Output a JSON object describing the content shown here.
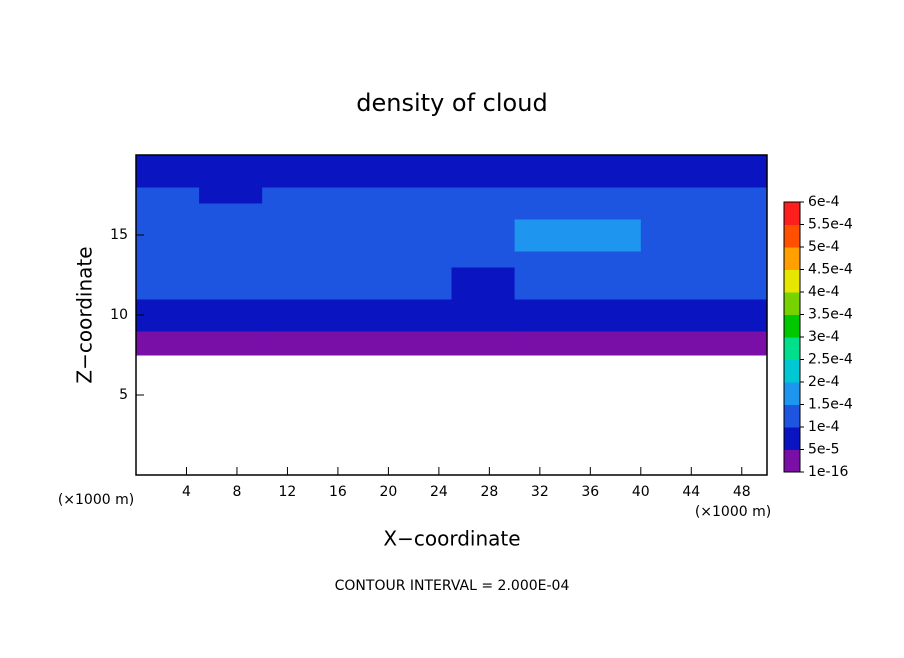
{
  "chart_data": {
    "type": "contour",
    "title": "density of cloud",
    "x_label": "X−coordinate",
    "y_label": "Z−coordinate",
    "x_unit": "(×1000 m)",
    "y_unit": "(×1000 m)",
    "footer": "CONTOUR INTERVAL = 2.000E-04",
    "xlim": [
      0,
      50
    ],
    "ylim": [
      0,
      20
    ],
    "xticks": [
      4,
      8,
      12,
      16,
      20,
      24,
      28,
      32,
      36,
      40,
      44,
      48
    ],
    "yticks": [
      5,
      10,
      15
    ],
    "xbins": [
      0,
      5,
      10,
      15,
      20,
      25,
      30,
      35,
      40,
      45,
      50
    ],
    "zbins": [
      7.5,
      9,
      10,
      11,
      12,
      13,
      14,
      15,
      16,
      17,
      18,
      19,
      20
    ],
    "values": [
      [
        2e-05,
        2e-05,
        2e-05,
        2e-05,
        2e-05,
        2e-05,
        2e-05,
        2e-05,
        2e-05,
        2e-05
      ],
      [
        6e-05,
        6e-05,
        6e-05,
        6e-05,
        6e-05,
        6e-05,
        6e-05,
        6e-05,
        6e-05,
        6e-05
      ],
      [
        9e-05,
        9e-05,
        9e-05,
        9e-05,
        9e-05,
        9e-05,
        9e-05,
        9e-05,
        9e-05,
        9e-05
      ],
      [
        0.0001,
        0.0001,
        0.0001,
        0.0001,
        0.0001,
        8e-05,
        0.0001,
        0.0001,
        0.0001,
        0.0001
      ],
      [
        0.00011,
        0.00011,
        0.00011,
        0.00011,
        0.00011,
        7e-05,
        0.00011,
        0.00011,
        0.00011,
        0.00011
      ],
      [
        0.00012,
        0.00012,
        0.00012,
        0.00012,
        0.00012,
        0.00011,
        0.00012,
        0.00012,
        0.00012,
        0.00012
      ],
      [
        0.00013,
        0.00013,
        0.00012,
        0.00013,
        0.00013,
        0.00013,
        0.00016,
        0.00016,
        0.00013,
        0.00013
      ],
      [
        0.00013,
        0.00013,
        0.00012,
        0.00013,
        0.00013,
        0.00013,
        0.00016,
        0.00016,
        0.00013,
        0.00013
      ],
      [
        0.00012,
        0.00011,
        0.00012,
        0.00012,
        0.00012,
        0.00012,
        0.00012,
        0.00012,
        0.00012,
        0.00012
      ],
      [
        0.00012,
        8e-05,
        0.00011,
        0.00012,
        0.00012,
        0.00012,
        0.00012,
        0.00012,
        0.00012,
        0.00012
      ],
      [
        9e-05,
        9e-05,
        9e-05,
        9e-05,
        9e-05,
        9e-05,
        9e-05,
        9e-05,
        9e-05,
        9e-05
      ],
      [
        6e-05,
        6e-05,
        6e-05,
        6e-05,
        6e-05,
        6e-05,
        6e-05,
        6e-05,
        6e-05,
        5e-05
      ]
    ],
    "levels": [
      {
        "value": 1e-16,
        "label": "1e-16"
      },
      {
        "value": 5e-05,
        "label": "5e-5"
      },
      {
        "value": 0.0001,
        "label": "1e-4"
      },
      {
        "value": 0.00015,
        "label": "1.5e-4"
      },
      {
        "value": 0.0002,
        "label": "2e-4"
      },
      {
        "value": 0.00025,
        "label": "2.5e-4"
      },
      {
        "value": 0.0003,
        "label": "3e-4"
      },
      {
        "value": 0.00035,
        "label": "3.5e-4"
      },
      {
        "value": 0.0004,
        "label": "4e-4"
      },
      {
        "value": 0.00045,
        "label": "4.5e-4"
      },
      {
        "value": 0.0005,
        "label": "5e-4"
      },
      {
        "value": 0.00055,
        "label": "5.5e-4"
      },
      {
        "value": 0.0006,
        "label": "6e-4"
      }
    ],
    "colors": [
      "#7a0fa8",
      "#0a14c0",
      "#1e55e0",
      "#1e96f0",
      "#00c8d2",
      "#00e08c",
      "#00c800",
      "#78d200",
      "#e6e600",
      "#ffa000",
      "#ff5000",
      "#ff1e1e",
      "#ff8c8c"
    ]
  }
}
